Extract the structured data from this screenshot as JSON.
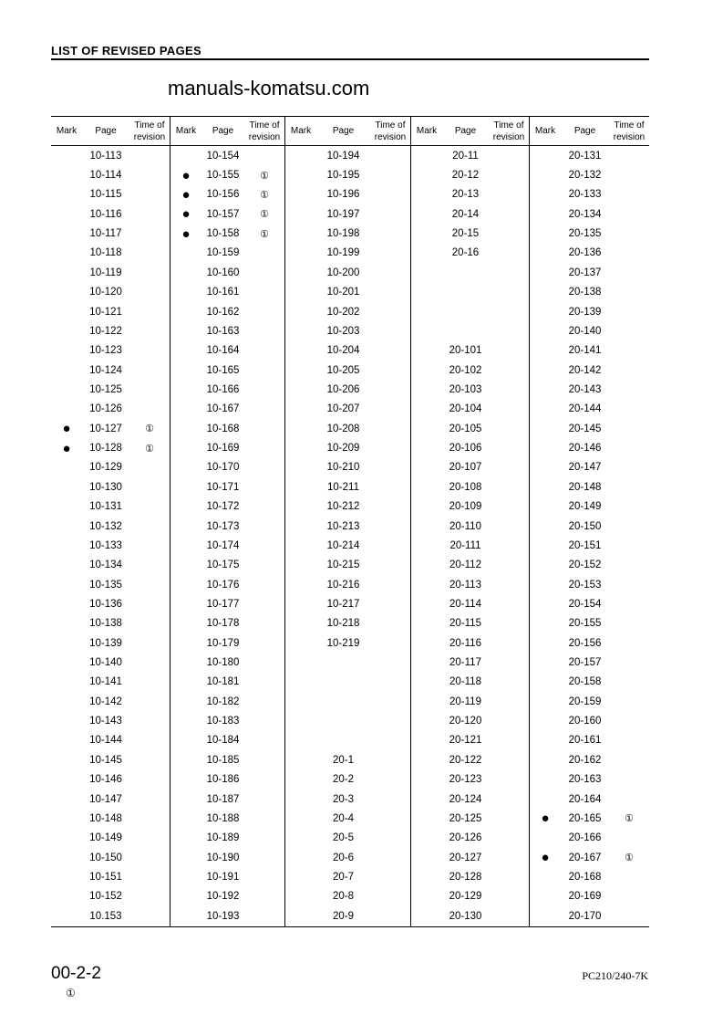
{
  "header": {
    "title": "LIST OF REVISED PAGES"
  },
  "watermark": "manuals-komatsu.com",
  "table": {
    "columns": {
      "mark": "Mark",
      "page": "Page",
      "time_line1": "Time of",
      "time_line2": "revision"
    },
    "mark_symbol": "●",
    "revision_symbol": "①",
    "groups": [
      {
        "rows": [
          [
            "",
            "10-113",
            ""
          ],
          [
            "",
            "10-114",
            ""
          ],
          [
            "",
            "10-115",
            ""
          ],
          [
            "",
            "10-116",
            ""
          ],
          [
            "",
            "10-117",
            ""
          ],
          [
            "",
            "10-118",
            ""
          ],
          [
            "",
            "10-119",
            ""
          ],
          [
            "",
            "10-120",
            ""
          ],
          [
            "",
            "10-121",
            ""
          ],
          [
            "",
            "10-122",
            ""
          ],
          [
            "",
            "10-123",
            ""
          ],
          [
            "",
            "10-124",
            ""
          ],
          [
            "",
            "10-125",
            ""
          ],
          [
            "",
            "10-126",
            ""
          ],
          [
            "●",
            "10-127",
            "①"
          ],
          [
            "●",
            "10-128",
            "①"
          ],
          [
            "",
            "10-129",
            ""
          ],
          [
            "",
            "10-130",
            ""
          ],
          [
            "",
            "10-131",
            ""
          ],
          [
            "",
            "10-132",
            ""
          ],
          [
            "",
            "10-133",
            ""
          ],
          [
            "",
            "10-134",
            ""
          ],
          [
            "",
            "10-135",
            ""
          ],
          [
            "",
            "10-136",
            ""
          ],
          [
            "",
            "10-138",
            ""
          ],
          [
            "",
            "10-139",
            ""
          ],
          [
            "",
            "10-140",
            ""
          ],
          [
            "",
            "10-141",
            ""
          ],
          [
            "",
            "10-142",
            ""
          ],
          [
            "",
            "10-143",
            ""
          ],
          [
            "",
            "10-144",
            ""
          ],
          [
            "",
            "10-145",
            ""
          ],
          [
            "",
            "10-146",
            ""
          ],
          [
            "",
            "10-147",
            ""
          ],
          [
            "",
            "10-148",
            ""
          ],
          [
            "",
            "10-149",
            ""
          ],
          [
            "",
            "10-150",
            ""
          ],
          [
            "",
            "10-151",
            ""
          ],
          [
            "",
            "10-152",
            ""
          ],
          [
            "",
            "10.153",
            ""
          ]
        ]
      },
      {
        "rows": [
          [
            "",
            "10-154",
            ""
          ],
          [
            "●",
            "10-155",
            "①"
          ],
          [
            "●",
            "10-156",
            "①"
          ],
          [
            "●",
            "10-157",
            "①"
          ],
          [
            "●",
            "10-158",
            "①"
          ],
          [
            "",
            "10-159",
            ""
          ],
          [
            "",
            "10-160",
            ""
          ],
          [
            "",
            "10-161",
            ""
          ],
          [
            "",
            "10-162",
            ""
          ],
          [
            "",
            "10-163",
            ""
          ],
          [
            "",
            "10-164",
            ""
          ],
          [
            "",
            "10-165",
            ""
          ],
          [
            "",
            "10-166",
            ""
          ],
          [
            "",
            "10-167",
            ""
          ],
          [
            "",
            "10-168",
            ""
          ],
          [
            "",
            "10-169",
            ""
          ],
          [
            "",
            "10-170",
            ""
          ],
          [
            "",
            "10-171",
            ""
          ],
          [
            "",
            "10-172",
            ""
          ],
          [
            "",
            "10-173",
            ""
          ],
          [
            "",
            "10-174",
            ""
          ],
          [
            "",
            "10-175",
            ""
          ],
          [
            "",
            "10-176",
            ""
          ],
          [
            "",
            "10-177",
            ""
          ],
          [
            "",
            "10-178",
            ""
          ],
          [
            "",
            "10-179",
            ""
          ],
          [
            "",
            "10-180",
            ""
          ],
          [
            "",
            "10-181",
            ""
          ],
          [
            "",
            "10-182",
            ""
          ],
          [
            "",
            "10-183",
            ""
          ],
          [
            "",
            "10-184",
            ""
          ],
          [
            "",
            "10-185",
            ""
          ],
          [
            "",
            "10-186",
            ""
          ],
          [
            "",
            "10-187",
            ""
          ],
          [
            "",
            "10-188",
            ""
          ],
          [
            "",
            "10-189",
            ""
          ],
          [
            "",
            "10-190",
            ""
          ],
          [
            "",
            "10-191",
            ""
          ],
          [
            "",
            "10-192",
            ""
          ],
          [
            "",
            "10-193",
            ""
          ]
        ]
      },
      {
        "rows": [
          [
            "",
            "10-194",
            ""
          ],
          [
            "",
            "10-195",
            ""
          ],
          [
            "",
            "10-196",
            ""
          ],
          [
            "",
            "10-197",
            ""
          ],
          [
            "",
            "10-198",
            ""
          ],
          [
            "",
            "10-199",
            ""
          ],
          [
            "",
            "10-200",
            ""
          ],
          [
            "",
            "10-201",
            ""
          ],
          [
            "",
            "10-202",
            ""
          ],
          [
            "",
            "10-203",
            ""
          ],
          [
            "",
            "10-204",
            ""
          ],
          [
            "",
            "10-205",
            ""
          ],
          [
            "",
            "10-206",
            ""
          ],
          [
            "",
            "10-207",
            ""
          ],
          [
            "",
            "10-208",
            ""
          ],
          [
            "",
            "10-209",
            ""
          ],
          [
            "",
            "10-210",
            ""
          ],
          [
            "",
            "10-211",
            ""
          ],
          [
            "",
            "10-212",
            ""
          ],
          [
            "",
            "10-213",
            ""
          ],
          [
            "",
            "10-214",
            ""
          ],
          [
            "",
            "10-215",
            ""
          ],
          [
            "",
            "10-216",
            ""
          ],
          [
            "",
            "10-217",
            ""
          ],
          [
            "",
            "10-218",
            ""
          ],
          [
            "",
            "10-219",
            ""
          ],
          [
            "",
            "",
            ""
          ],
          [
            "",
            "",
            ""
          ],
          [
            "",
            "",
            ""
          ],
          [
            "",
            "",
            ""
          ],
          [
            "",
            "",
            ""
          ],
          [
            "",
            "20-1",
            ""
          ],
          [
            "",
            "20-2",
            ""
          ],
          [
            "",
            "20-3",
            ""
          ],
          [
            "",
            "20-4",
            ""
          ],
          [
            "",
            "20-5",
            ""
          ],
          [
            "",
            "20-6",
            ""
          ],
          [
            "",
            "20-7",
            ""
          ],
          [
            "",
            "20-8",
            ""
          ],
          [
            "",
            "20-9",
            ""
          ]
        ]
      },
      {
        "rows": [
          [
            "",
            "20-11",
            ""
          ],
          [
            "",
            "20-12",
            ""
          ],
          [
            "",
            "20-13",
            ""
          ],
          [
            "",
            "20-14",
            ""
          ],
          [
            "",
            "20-15",
            ""
          ],
          [
            "",
            "20-16",
            ""
          ],
          [
            "",
            "",
            ""
          ],
          [
            "",
            "",
            ""
          ],
          [
            "",
            "",
            ""
          ],
          [
            "",
            "",
            ""
          ],
          [
            "",
            "20-101",
            ""
          ],
          [
            "",
            "20-102",
            ""
          ],
          [
            "",
            "20-103",
            ""
          ],
          [
            "",
            "20-104",
            ""
          ],
          [
            "",
            "20-105",
            ""
          ],
          [
            "",
            "20-106",
            ""
          ],
          [
            "",
            "20-107",
            ""
          ],
          [
            "",
            "20-108",
            ""
          ],
          [
            "",
            "20-109",
            ""
          ],
          [
            "",
            "20-110",
            ""
          ],
          [
            "",
            "20-111",
            ""
          ],
          [
            "",
            "20-112",
            ""
          ],
          [
            "",
            "20-113",
            ""
          ],
          [
            "",
            "20-114",
            ""
          ],
          [
            "",
            "20-115",
            ""
          ],
          [
            "",
            "20-116",
            ""
          ],
          [
            "",
            "20-117",
            ""
          ],
          [
            "",
            "20-118",
            ""
          ],
          [
            "",
            "20-119",
            ""
          ],
          [
            "",
            "20-120",
            ""
          ],
          [
            "",
            "20-121",
            ""
          ],
          [
            "",
            "20-122",
            ""
          ],
          [
            "",
            "20-123",
            ""
          ],
          [
            "",
            "20-124",
            ""
          ],
          [
            "",
            "20-125",
            ""
          ],
          [
            "",
            "20-126",
            ""
          ],
          [
            "",
            "20-127",
            ""
          ],
          [
            "",
            "20-128",
            ""
          ],
          [
            "",
            "20-129",
            ""
          ],
          [
            "",
            "20-130",
            ""
          ]
        ]
      },
      {
        "rows": [
          [
            "",
            "20-131",
            ""
          ],
          [
            "",
            "20-132",
            ""
          ],
          [
            "",
            "20-133",
            ""
          ],
          [
            "",
            "20-134",
            ""
          ],
          [
            "",
            "20-135",
            ""
          ],
          [
            "",
            "20-136",
            ""
          ],
          [
            "",
            "20-137",
            ""
          ],
          [
            "",
            "20-138",
            ""
          ],
          [
            "",
            "20-139",
            ""
          ],
          [
            "",
            "20-140",
            ""
          ],
          [
            "",
            "20-141",
            ""
          ],
          [
            "",
            "20-142",
            ""
          ],
          [
            "",
            "20-143",
            ""
          ],
          [
            "",
            "20-144",
            ""
          ],
          [
            "",
            "20-145",
            ""
          ],
          [
            "",
            "20-146",
            ""
          ],
          [
            "",
            "20-147",
            ""
          ],
          [
            "",
            "20-148",
            ""
          ],
          [
            "",
            "20-149",
            ""
          ],
          [
            "",
            "20-150",
            ""
          ],
          [
            "",
            "20-151",
            ""
          ],
          [
            "",
            "20-152",
            ""
          ],
          [
            "",
            "20-153",
            ""
          ],
          [
            "",
            "20-154",
            ""
          ],
          [
            "",
            "20-155",
            ""
          ],
          [
            "",
            "20-156",
            ""
          ],
          [
            "",
            "20-157",
            ""
          ],
          [
            "",
            "20-158",
            ""
          ],
          [
            "",
            "20-159",
            ""
          ],
          [
            "",
            "20-160",
            ""
          ],
          [
            "",
            "20-161",
            ""
          ],
          [
            "",
            "20-162",
            ""
          ],
          [
            "",
            "20-163",
            ""
          ],
          [
            "",
            "20-164",
            ""
          ],
          [
            "●",
            "20-165",
            "①"
          ],
          [
            "",
            "20-166",
            ""
          ],
          [
            "●",
            "20-167",
            "①"
          ],
          [
            "",
            "20-168",
            ""
          ],
          [
            "",
            "20-169",
            ""
          ],
          [
            "",
            "20-170",
            ""
          ]
        ]
      }
    ]
  },
  "footer": {
    "page_number": "00-2-2",
    "page_revision": "①",
    "model": "PC210/240-7K"
  }
}
